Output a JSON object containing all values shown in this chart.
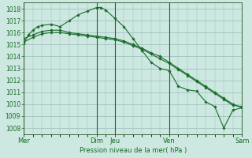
{
  "bg_color": "#cce8e0",
  "grid_color": "#99bbbb",
  "line_color": "#1a6b2a",
  "marker_color": "#1a6b2a",
  "xlabel": "Pression niveau de la mer( hPa )",
  "ylim": [
    1007.5,
    1018.5
  ],
  "yticks": [
    1008,
    1009,
    1010,
    1011,
    1012,
    1013,
    1014,
    1015,
    1016,
    1017,
    1018
  ],
  "xtick_labels": [
    "Mer",
    "Dim",
    "Jeu",
    "Ven",
    "Sam"
  ],
  "xtick_positions": [
    0,
    16,
    20,
    32,
    48
  ],
  "vline_positions": [
    0,
    16,
    20,
    32,
    48
  ],
  "xlim": [
    0,
    48
  ],
  "series": [
    {
      "x": [
        0,
        1,
        2,
        3,
        4,
        6,
        8,
        10,
        12,
        14,
        16,
        17,
        18,
        20,
        22,
        24,
        26,
        28,
        30,
        32,
        34,
        36,
        38,
        40,
        42,
        44,
        46,
        48
      ],
      "y": [
        1015.1,
        1015.8,
        1016.2,
        1016.5,
        1016.6,
        1016.7,
        1016.5,
        1017.0,
        1017.5,
        1017.8,
        1018.1,
        1018.1,
        1017.9,
        1017.2,
        1016.5,
        1015.5,
        1014.5,
        1013.5,
        1013.0,
        1012.8,
        1011.5,
        1011.2,
        1011.1,
        1010.2,
        1009.8,
        1008.0,
        1009.5,
        1009.7
      ]
    },
    {
      "x": [
        0,
        2,
        4,
        6,
        8,
        10,
        12,
        14,
        16,
        18,
        20,
        22,
        24,
        26,
        28,
        30,
        32,
        34,
        36,
        38,
        40,
        42,
        44,
        46,
        48
      ],
      "y": [
        1015.5,
        1015.8,
        1016.1,
        1016.2,
        1016.2,
        1016.0,
        1015.9,
        1015.8,
        1015.7,
        1015.6,
        1015.5,
        1015.3,
        1015.0,
        1014.7,
        1014.3,
        1014.0,
        1013.5,
        1013.0,
        1012.5,
        1012.0,
        1011.5,
        1011.0,
        1010.5,
        1010.0,
        1009.7
      ]
    },
    {
      "x": [
        0,
        2,
        4,
        6,
        8,
        10,
        12,
        14,
        16,
        18,
        20,
        22,
        24,
        26,
        28,
        30,
        32,
        34,
        36,
        38,
        40,
        42,
        44,
        46,
        48
      ],
      "y": [
        1015.2,
        1015.6,
        1015.9,
        1016.0,
        1016.0,
        1015.9,
        1015.8,
        1015.7,
        1015.6,
        1015.5,
        1015.4,
        1015.2,
        1014.9,
        1014.6,
        1014.2,
        1013.8,
        1013.4,
        1012.9,
        1012.4,
        1011.9,
        1011.4,
        1010.9,
        1010.4,
        1009.9,
        1009.8
      ]
    }
  ],
  "figsize": [
    3.2,
    2.0
  ],
  "dpi": 100
}
